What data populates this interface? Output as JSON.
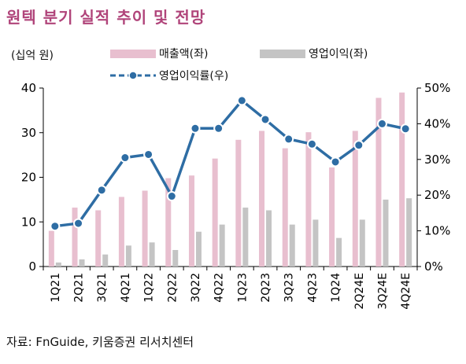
{
  "chart_data": {
    "type": "bar",
    "title": "원텍 분기 실적 추이 및 전망",
    "unit_label": "(십억 원)",
    "source": "자료: FnGuide, 키움증권 리서치센터",
    "categories": [
      "1Q21",
      "2Q21",
      "3Q21",
      "4Q21",
      "1Q22",
      "2Q22",
      "3Q22",
      "4Q22",
      "1Q23",
      "2Q23",
      "3Q23",
      "4Q23",
      "1Q24",
      "2Q24E",
      "3Q24E",
      "4Q24E"
    ],
    "series": [
      {
        "name": "매출액(좌)",
        "axis": "left",
        "kind": "bar",
        "color": "#e8bfcf",
        "values": [
          8.0,
          13.2,
          12.6,
          15.6,
          17.0,
          19.8,
          20.4,
          24.2,
          28.4,
          30.4,
          26.5,
          30.1,
          22.2,
          30.4,
          37.8,
          39.0
        ]
      },
      {
        "name": "영업이익(좌)",
        "axis": "left",
        "kind": "bar",
        "color": "#c4c4c4",
        "values": [
          0.9,
          1.6,
          2.7,
          4.7,
          5.4,
          3.7,
          7.8,
          9.4,
          13.2,
          12.6,
          9.4,
          10.5,
          6.4,
          10.5,
          15.0,
          15.3
        ]
      },
      {
        "name": "영업이익률(우)",
        "axis": "right",
        "kind": "line",
        "color": "#2e6da4",
        "values": [
          11.3,
          12.1,
          21.4,
          30.5,
          31.4,
          19.7,
          38.7,
          38.7,
          46.5,
          41.2,
          35.7,
          34.3,
          29.3,
          34.0,
          40.0,
          38.6
        ]
      }
    ],
    "y_left": {
      "ticks": [
        "0",
        "10",
        "20",
        "30",
        "40"
      ],
      "ylim": [
        0,
        40
      ]
    },
    "y_right": {
      "ticks": [
        "0%",
        "10%",
        "20%",
        "30%",
        "40%",
        "50%"
      ],
      "ylim": [
        0,
        50
      ]
    },
    "grid": false,
    "legend": "top"
  }
}
